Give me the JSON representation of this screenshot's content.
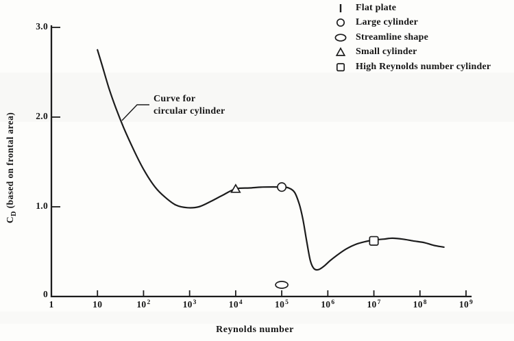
{
  "figure": {
    "background": "#fdfdfb",
    "ink": "#1c1c1c",
    "marker_fill": "#ffffff"
  },
  "chart_data": {
    "type": "line",
    "title": "",
    "xlabel": "Reynolds number",
    "ylabel": {
      "symbol": "C",
      "subscript": "D",
      "rest": " (based on frontal area)"
    },
    "x_scale": "log10",
    "xlim": [
      1,
      1000000000
    ],
    "ylim": [
      0,
      3.0
    ],
    "grid": false,
    "legend_position": "top-right",
    "x_ticks": [
      {
        "label": "1",
        "sup": "",
        "log": 0
      },
      {
        "label": "10",
        "sup": "",
        "log": 1
      },
      {
        "label": "10",
        "sup": "2",
        "log": 2
      },
      {
        "label": "10",
        "sup": "3",
        "log": 3
      },
      {
        "label": "10",
        "sup": "4",
        "log": 4
      },
      {
        "label": "10",
        "sup": "5",
        "log": 5
      },
      {
        "label": "10",
        "sup": "6",
        "log": 6
      },
      {
        "label": "10",
        "sup": "7",
        "log": 7
      },
      {
        "label": "10",
        "sup": "8",
        "log": 8
      },
      {
        "label": "10",
        "sup": "9",
        "log": 9
      }
    ],
    "y_ticks": [
      {
        "label": "0",
        "value": 0
      },
      {
        "label": "1.0",
        "value": 1.0
      },
      {
        "label": "2.0",
        "value": 2.0
      },
      {
        "label": "3.0",
        "value": 3.0
      }
    ],
    "series": [
      {
        "name": "Curve for circular cylinder",
        "points_logRe_cd": [
          [
            1.0,
            2.75
          ],
          [
            1.1,
            2.58
          ],
          [
            1.25,
            2.32
          ],
          [
            1.4,
            2.1
          ],
          [
            1.57,
            1.88
          ],
          [
            1.8,
            1.62
          ],
          [
            2.02,
            1.4
          ],
          [
            2.25,
            1.22
          ],
          [
            2.46,
            1.11
          ],
          [
            2.7,
            1.02
          ],
          [
            2.95,
            0.99
          ],
          [
            3.2,
            1.0
          ],
          [
            3.46,
            1.06
          ],
          [
            3.72,
            1.13
          ],
          [
            4.0,
            1.2
          ],
          [
            4.3,
            1.21
          ],
          [
            4.6,
            1.22
          ],
          [
            5.0,
            1.22
          ],
          [
            5.15,
            1.21
          ],
          [
            5.28,
            1.16
          ],
          [
            5.38,
            1.03
          ],
          [
            5.46,
            0.86
          ],
          [
            5.54,
            0.62
          ],
          [
            5.62,
            0.4
          ],
          [
            5.7,
            0.31
          ],
          [
            5.8,
            0.3
          ],
          [
            5.92,
            0.34
          ],
          [
            6.05,
            0.4
          ],
          [
            6.2,
            0.46
          ],
          [
            6.4,
            0.53
          ],
          [
            6.6,
            0.58
          ],
          [
            6.8,
            0.61
          ],
          [
            7.0,
            0.63
          ],
          [
            7.22,
            0.64
          ],
          [
            7.4,
            0.65
          ],
          [
            7.62,
            0.64
          ],
          [
            7.85,
            0.62
          ],
          [
            8.1,
            0.6
          ],
          [
            8.3,
            0.57
          ],
          [
            8.52,
            0.55
          ]
        ]
      }
    ],
    "data_markers": [
      {
        "shape": "triangle",
        "label": "Small cylinder",
        "log_re": 4.0,
        "cd": 1.2
      },
      {
        "shape": "circle",
        "label": "Large cylinder",
        "log_re": 5.0,
        "cd": 1.22
      },
      {
        "shape": "ellipse",
        "label": "Streamline shape",
        "log_re": 5.0,
        "cd": 0.13
      },
      {
        "shape": "square",
        "label": "High Reynolds number cylinder",
        "log_re": 7.0,
        "cd": 0.62
      }
    ],
    "annotation": {
      "line1": "Curve for",
      "line2": "circular cylinder"
    },
    "legend": [
      {
        "marker": "flat-plate",
        "label": "Flat plate"
      },
      {
        "marker": "circle",
        "label": "Large cylinder"
      },
      {
        "marker": "ellipse",
        "label": "Streamline shape"
      },
      {
        "marker": "triangle",
        "label": "Small cylinder"
      },
      {
        "marker": "square",
        "label": "High Reynolds number cylinder"
      }
    ]
  }
}
